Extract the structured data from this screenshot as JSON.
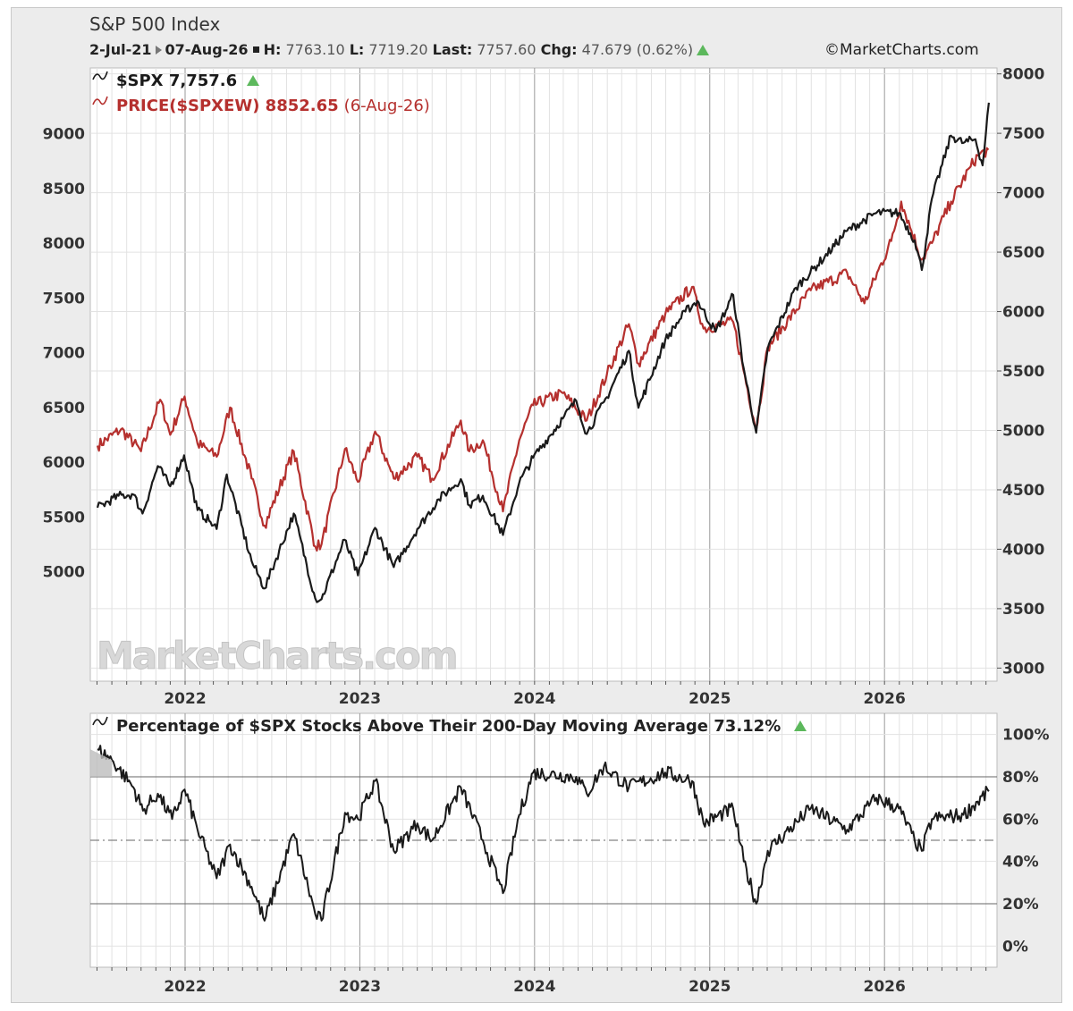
{
  "header": {
    "title": "S&P 500 Index",
    "date_start": "2-Jul-21",
    "date_end": "07-Aug-26",
    "high_label": "H:",
    "high": "7763.10",
    "low_label": "L:",
    "low": "7719.20",
    "last_label": "Last:",
    "last": "7757.60",
    "chg_label": "Chg:",
    "chg": "47.679 (0.62%)",
    "copyright": "©MarketCharts.com",
    "watermark": "MarketCharts.com"
  },
  "colors": {
    "spx": "#1a1a1a",
    "spxew": "#b5302e",
    "up": "#5cb85c"
  },
  "chart_data": [
    {
      "type": "line",
      "x_ticks": [
        "2022",
        "2023",
        "2024",
        "2025",
        "2026"
      ],
      "left_axis": {
        "ticks": [
          5000,
          5500,
          6000,
          6500,
          7000,
          7500,
          8000,
          8500,
          9000
        ],
        "range": [
          4000,
          9600
        ],
        "series": "PRICE($SPXEW)"
      },
      "right_axis": {
        "ticks": [
          3000,
          3500,
          4000,
          4500,
          5000,
          5500,
          6000,
          6500,
          7000,
          7500,
          8000
        ],
        "range": [
          2890,
          8050
        ],
        "series": "$SPX"
      },
      "grid": true,
      "legend_position": "top-left",
      "series": [
        {
          "name": "$SPX",
          "legend": "$SPX 7,757.6",
          "axis": "right",
          "points": [
            [
              "2021-07-02",
              4350
            ],
            [
              "2021-08-15",
              4450
            ],
            [
              "2021-09-15",
              4460
            ],
            [
              "2021-10-04",
              4300
            ],
            [
              "2021-11-05",
              4700
            ],
            [
              "2021-12-01",
              4530
            ],
            [
              "2021-12-30",
              4790
            ],
            [
              "2022-01-27",
              4330
            ],
            [
              "2022-02-23",
              4230
            ],
            [
              "2022-03-08",
              4170
            ],
            [
              "2022-03-29",
              4630
            ],
            [
              "2022-05-20",
              3900
            ],
            [
              "2022-06-16",
              3670
            ],
            [
              "2022-08-16",
              4300
            ],
            [
              "2022-09-30",
              3585
            ],
            [
              "2022-10-13",
              3580
            ],
            [
              "2022-11-30",
              4080
            ],
            [
              "2022-12-28",
              3780
            ],
            [
              "2023-02-02",
              4180
            ],
            [
              "2023-03-13",
              3850
            ],
            [
              "2023-05-01",
              4170
            ],
            [
              "2023-06-15",
              4420
            ],
            [
              "2023-07-31",
              4590
            ],
            [
              "2023-08-18",
              4370
            ],
            [
              "2023-09-15",
              4450
            ],
            [
              "2023-10-27",
              4120
            ],
            [
              "2023-11-30",
              4560
            ],
            [
              "2023-12-29",
              4770
            ],
            [
              "2024-02-29",
              5100
            ],
            [
              "2024-03-28",
              5250
            ],
            [
              "2024-04-19",
              4970
            ],
            [
              "2024-05-31",
              5280
            ],
            [
              "2024-07-16",
              5670
            ],
            [
              "2024-08-05",
              5190
            ],
            [
              "2024-09-30",
              5760
            ],
            [
              "2024-11-11",
              6000
            ],
            [
              "2024-12-06",
              6090
            ],
            [
              "2025-01-13",
              5830
            ],
            [
              "2025-02-19",
              6140
            ],
            [
              "2025-03-13",
              5520
            ],
            [
              "2025-04-08",
              4980
            ],
            [
              "2025-05-02",
              5690
            ],
            [
              "2025-06-30",
              6200
            ],
            [
              "2025-08-29",
              6460
            ],
            [
              "2025-10-15",
              6680
            ],
            [
              "2025-12-15",
              6830
            ],
            [
              "2026-01-31",
              6830
            ],
            [
              "2026-03-05",
              6600
            ],
            [
              "2026-03-20",
              6350
            ],
            [
              "2026-04-10",
              6950
            ],
            [
              "2026-05-20",
              7480
            ],
            [
              "2026-06-15",
              7420
            ],
            [
              "2026-07-10",
              7450
            ],
            [
              "2026-07-25",
              7230
            ],
            [
              "2026-08-07",
              7757.6
            ]
          ]
        },
        {
          "name": "PRICE($SPXEW)",
          "legend": "PRICE($SPXEW) 8852.65",
          "legend_date": "(6-Aug-26)",
          "axis": "left",
          "points": [
            [
              "2021-07-02",
              6150
            ],
            [
              "2021-08-20",
              6300
            ],
            [
              "2021-10-01",
              6100
            ],
            [
              "2021-11-10",
              6570
            ],
            [
              "2021-12-01",
              6250
            ],
            [
              "2021-12-31",
              6600
            ],
            [
              "2022-01-27",
              6170
            ],
            [
              "2022-03-08",
              6050
            ],
            [
              "2022-04-05",
              6500
            ],
            [
              "2022-05-20",
              5850
            ],
            [
              "2022-06-16",
              5420
            ],
            [
              "2022-08-16",
              6100
            ],
            [
              "2022-09-30",
              5230
            ],
            [
              "2022-10-13",
              5250
            ],
            [
              "2022-12-01",
              6120
            ],
            [
              "2022-12-28",
              5820
            ],
            [
              "2023-02-02",
              6280
            ],
            [
              "2023-03-13",
              5850
            ],
            [
              "2023-05-01",
              6050
            ],
            [
              "2023-06-01",
              5850
            ],
            [
              "2023-07-31",
              6380
            ],
            [
              "2023-08-18",
              6100
            ],
            [
              "2023-09-15",
              6200
            ],
            [
              "2023-10-27",
              5550
            ],
            [
              "2023-11-30",
              6200
            ],
            [
              "2023-12-29",
              6520
            ],
            [
              "2024-02-29",
              6630
            ],
            [
              "2024-04-19",
              6380
            ],
            [
              "2024-05-31",
              6800
            ],
            [
              "2024-07-16",
              7260
            ],
            [
              "2024-08-05",
              6900
            ],
            [
              "2024-09-30",
              7350
            ],
            [
              "2024-11-25",
              7600
            ],
            [
              "2024-12-19",
              7220
            ],
            [
              "2025-02-19",
              7280
            ],
            [
              "2025-04-08",
              6300
            ],
            [
              "2025-05-02",
              7050
            ],
            [
              "2025-07-31",
              7570
            ],
            [
              "2025-10-15",
              7730
            ],
            [
              "2025-11-20",
              7450
            ],
            [
              "2026-01-15",
              8020
            ],
            [
              "2026-02-05",
              8380
            ],
            [
              "2026-03-20",
              7850
            ],
            [
              "2026-04-10",
              8000
            ],
            [
              "2026-05-20",
              8380
            ],
            [
              "2026-06-30",
              8700
            ],
            [
              "2026-07-15",
              8800
            ],
            [
              "2026-08-06",
              8852.65
            ]
          ]
        }
      ]
    },
    {
      "type": "line",
      "title": "Percentage of $SPX Stocks Above Their 200-Day Moving Average 73.12%",
      "x_ticks": [
        "2022",
        "2023",
        "2024",
        "2025",
        "2026"
      ],
      "y_ticks": [
        "0%",
        "20%",
        "40%",
        "60%",
        "80%",
        "100%"
      ],
      "ylim": [
        -10,
        110
      ],
      "reference_lines": [
        80,
        50,
        20
      ],
      "series": [
        {
          "name": "Percentage of $SPX Stocks Above Their 200-Day Moving Average",
          "points": [
            [
              "2021-07-02",
              93
            ],
            [
              "2021-08-01",
              88
            ],
            [
              "2021-09-15",
              75
            ],
            [
              "2021-10-05",
              64
            ],
            [
              "2021-11-05",
              72
            ],
            [
              "2021-12-05",
              60
            ],
            [
              "2021-12-31",
              74
            ],
            [
              "2022-01-27",
              55
            ],
            [
              "2022-03-08",
              32
            ],
            [
              "2022-04-05",
              48
            ],
            [
              "2022-05-20",
              28
            ],
            [
              "2022-06-16",
              12
            ],
            [
              "2022-08-16",
              53
            ],
            [
              "2022-09-30",
              15
            ],
            [
              "2022-10-13",
              12
            ],
            [
              "2022-12-01",
              63
            ],
            [
              "2022-12-28",
              60
            ],
            [
              "2023-02-02",
              78
            ],
            [
              "2023-03-13",
              45
            ],
            [
              "2023-05-01",
              58
            ],
            [
              "2023-06-01",
              50
            ],
            [
              "2023-07-31",
              75
            ],
            [
              "2023-09-15",
              50
            ],
            [
              "2023-10-27",
              25
            ],
            [
              "2023-11-30",
              62
            ],
            [
              "2023-12-29",
              82
            ],
            [
              "2024-03-28",
              80
            ],
            [
              "2024-04-19",
              72
            ],
            [
              "2024-05-25",
              85
            ],
            [
              "2024-07-16",
              75
            ],
            [
              "2024-09-30",
              82
            ],
            [
              "2024-11-25",
              78
            ],
            [
              "2024-12-19",
              58
            ],
            [
              "2025-02-19",
              65
            ],
            [
              "2025-03-13",
              40
            ],
            [
              "2025-04-08",
              20
            ],
            [
              "2025-05-02",
              45
            ],
            [
              "2025-07-31",
              65
            ],
            [
              "2025-10-15",
              55
            ],
            [
              "2025-12-15",
              70
            ],
            [
              "2026-01-31",
              65
            ],
            [
              "2026-03-05",
              50
            ],
            [
              "2026-03-20",
              45
            ],
            [
              "2026-04-10",
              60
            ],
            [
              "2026-06-15",
              62
            ],
            [
              "2026-08-07",
              73.12
            ]
          ]
        }
      ]
    }
  ]
}
